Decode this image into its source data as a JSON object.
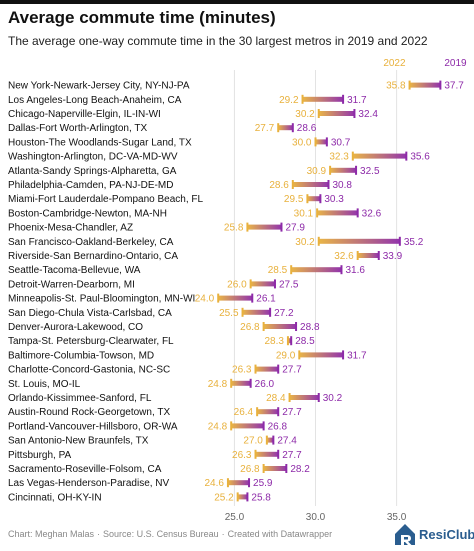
{
  "title": "Average commute time (minutes)",
  "subtitle": "The average one-way commute time in the 30 largest metros in 2019 and 2022",
  "footer": {
    "chart_credit": "Chart: Meghan Malas",
    "source": "Source: U.S. Census Bureau",
    "tool": "Created with Datawrapper"
  },
  "logo": {
    "name": "ResiClub",
    "icon": "resiclub-logo-icon"
  },
  "colors": {
    "y2022": "#e8b13d",
    "y2019": "#8d2aa8",
    "grid": "#e3e3e3",
    "text": "#111111"
  },
  "chart_data": {
    "type": "range-dot",
    "series": [
      {
        "name": "2022",
        "color": "#e8b13d"
      },
      {
        "name": "2019",
        "color": "#8d2aa8"
      }
    ],
    "xlim": [
      23,
      37.8
    ],
    "xticks": [
      25.0,
      30.0,
      35.0
    ],
    "xtick_labels": [
      "25.0",
      "30.0",
      "35.0"
    ],
    "grid": true,
    "legend": "top-right",
    "rows": [
      {
        "metro": "New York-Newark-Jersey City, NY-NJ-PA",
        "v2022": 35.8,
        "v2019": 37.7
      },
      {
        "metro": "Los Angeles-Long Beach-Anaheim, CA",
        "v2022": 29.2,
        "v2019": 31.7
      },
      {
        "metro": "Chicago-Naperville-Elgin, IL-IN-WI",
        "v2022": 30.2,
        "v2019": 32.4
      },
      {
        "metro": "Dallas-Fort Worth-Arlington, TX",
        "v2022": 27.7,
        "v2019": 28.6
      },
      {
        "metro": "Houston-The Woodlands-Sugar Land, TX",
        "v2022": 30.0,
        "v2019": 30.7
      },
      {
        "metro": "Washington-Arlington, DC-VA-MD-WV",
        "v2022": 32.3,
        "v2019": 35.6
      },
      {
        "metro": "Atlanta-Sandy Springs-Alpharetta, GA",
        "v2022": 30.9,
        "v2019": 32.5
      },
      {
        "metro": "Philadelphia-Camden, PA-NJ-DE-MD",
        "v2022": 28.6,
        "v2019": 30.8
      },
      {
        "metro": "Miami-Fort Lauderdale-Pompano Beach, FL",
        "v2022": 29.5,
        "v2019": 30.3
      },
      {
        "metro": "Boston-Cambridge-Newton, MA-NH",
        "v2022": 30.1,
        "v2019": 32.6
      },
      {
        "metro": "Phoenix-Mesa-Chandler, AZ",
        "v2022": 25.8,
        "v2019": 27.9
      },
      {
        "metro": "San Francisco-Oakland-Berkeley, CA",
        "v2022": 30.2,
        "v2019": 35.2
      },
      {
        "metro": "Riverside-San Bernardino-Ontario, CA",
        "v2022": 32.6,
        "v2019": 33.9
      },
      {
        "metro": "Seattle-Tacoma-Bellevue, WA",
        "v2022": 28.5,
        "v2019": 31.6
      },
      {
        "metro": "Detroit-Warren-Dearborn, MI",
        "v2022": 26.0,
        "v2019": 27.5
      },
      {
        "metro": "Minneapolis-St. Paul-Bloomington, MN-WI",
        "v2022": 24.0,
        "v2019": 26.1
      },
      {
        "metro": "San Diego-Chula Vista-Carlsbad, CA",
        "v2022": 25.5,
        "v2019": 27.2
      },
      {
        "metro": "Denver-Aurora-Lakewood, CO",
        "v2022": 26.8,
        "v2019": 28.8
      },
      {
        "metro": "Tampa-St. Petersburg-Clearwater, FL",
        "v2022": 28.3,
        "v2019": 28.5
      },
      {
        "metro": "Baltimore-Columbia-Towson, MD",
        "v2022": 29.0,
        "v2019": 31.7
      },
      {
        "metro": "Charlotte-Concord-Gastonia, NC-SC",
        "v2022": 26.3,
        "v2019": 27.7
      },
      {
        "metro": "St. Louis, MO-IL",
        "v2022": 24.8,
        "v2019": 26.0
      },
      {
        "metro": "Orlando-Kissimmee-Sanford, FL",
        "v2022": 28.4,
        "v2019": 30.2
      },
      {
        "metro": "Austin-Round Rock-Georgetown, TX",
        "v2022": 26.4,
        "v2019": 27.7
      },
      {
        "metro": "Portland-Vancouver-Hillsboro, OR-WA",
        "v2022": 24.8,
        "v2019": 26.8
      },
      {
        "metro": "San Antonio-New Braunfels, TX",
        "v2022": 27.0,
        "v2019": 27.4
      },
      {
        "metro": "Pittsburgh, PA",
        "v2022": 26.3,
        "v2019": 27.7
      },
      {
        "metro": "Sacramento-Roseville-Folsom, CA",
        "v2022": 26.8,
        "v2019": 28.2
      },
      {
        "metro": "Las Vegas-Henderson-Paradise, NV",
        "v2022": 24.6,
        "v2019": 25.9
      },
      {
        "metro": "Cincinnati, OH-KY-IN",
        "v2022": 25.2,
        "v2019": 25.8
      }
    ]
  }
}
